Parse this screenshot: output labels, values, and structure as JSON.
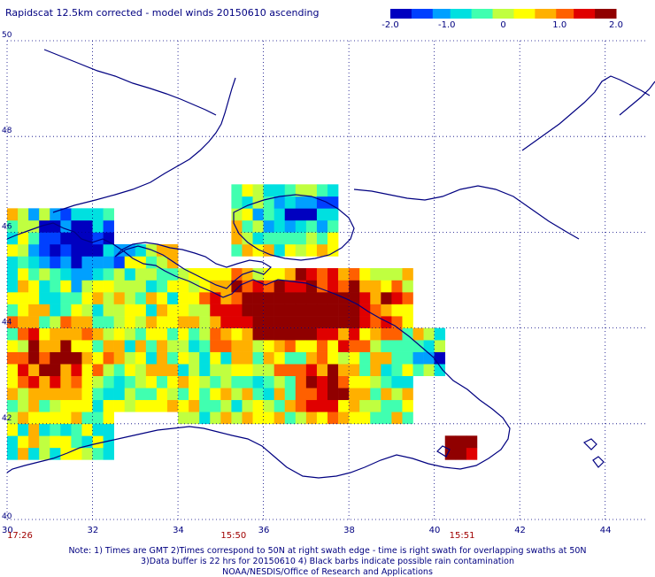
{
  "title": "Rapidscat 12.5km corrected - model winds 20150610 ascending",
  "colorbar": {
    "ticks": [
      "-2.0",
      "-1.0",
      "0",
      "1.0",
      "2.0"
    ],
    "tick_values": [
      -2.0,
      -1.0,
      0,
      1.0,
      2.0
    ],
    "range": [
      -2.0,
      2.0
    ],
    "colors": [
      "#0000c0",
      "#0040ff",
      "#00a0ff",
      "#00e0e0",
      "#40ffb0",
      "#c0ff40",
      "#ffff00",
      "#ffb000",
      "#ff6000",
      "#e00000",
      "#900000"
    ]
  },
  "map": {
    "lon_range": [
      30,
      45
    ],
    "lat_range": [
      40,
      50
    ],
    "lon_ticks": [
      "30",
      "32",
      "34",
      "36",
      "38",
      "40",
      "42",
      "44"
    ],
    "lon_tick_values": [
      30,
      32,
      34,
      36,
      38,
      40,
      42,
      44
    ],
    "lat_ticks": [
      "40",
      "42",
      "44",
      "46",
      "48",
      "50"
    ],
    "lat_tick_values": [
      40,
      42,
      44,
      46,
      48,
      50
    ],
    "gridlines": "dotted",
    "coastline_color": "#000080"
  },
  "times": [
    {
      "label": "17:26",
      "lon": 30.25
    },
    {
      "label": "15:50",
      "lon": 35.25
    },
    {
      "label": "15:51",
      "lon": 40.6
    }
  ],
  "notes": {
    "line1": "Note: 1) Times are GMT 2)Times correspond to 50N at right swath edge - time is right swath for overlapping swaths at 50N",
    "line2": "3)Data buffer is 22 hrs for 20150610 4) Black barbs indicate possible rain contamination",
    "line3": "NOAA/NESDIS/Office of Research and Applications"
  },
  "colors": {
    "text": "#000080",
    "time_text": "#a00000"
  }
}
